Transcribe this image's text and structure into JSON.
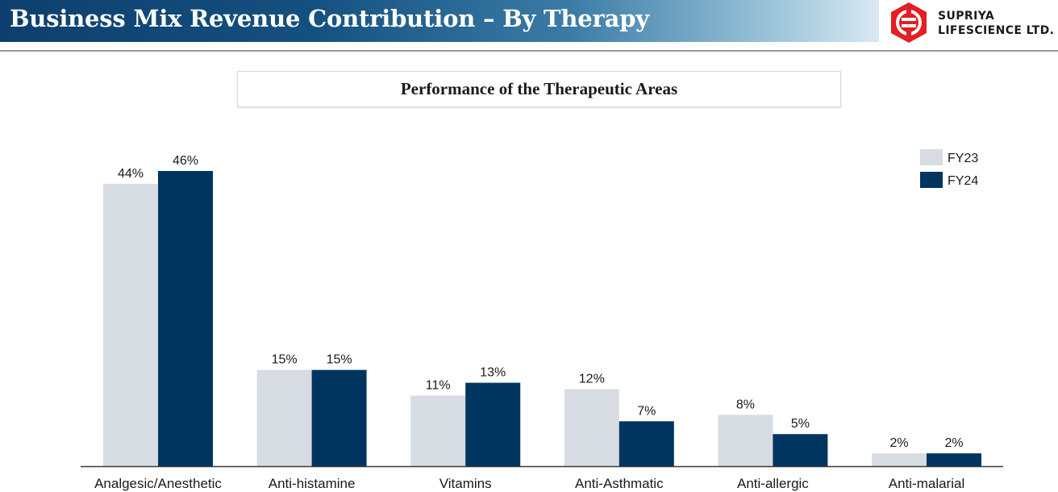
{
  "header": {
    "title": "Business Mix Revenue Contribution – By Therapy",
    "logo_line1": "SUPRIYA",
    "logo_line2": "LIFESCIENCE LTD."
  },
  "colors": {
    "header_start": "#0d3f6e",
    "logo_red": "#e31e24",
    "fy23": "#d6dce1",
    "fy24": "#003560"
  },
  "chart_data": {
    "type": "bar",
    "title": "Performance of the Therapeutic Areas",
    "categories": [
      "Analgesic/Anesthetic",
      "Anti-histamine",
      "Vitamins",
      "Anti-Asthmatic",
      "Anti-allergic",
      "Anti-malarial"
    ],
    "series": [
      {
        "name": "FY23",
        "values": [
          44,
          15,
          11,
          12,
          8,
          2
        ],
        "labels": [
          "44%",
          "15%",
          "11%",
          "12%",
          "8%",
          "2%"
        ],
        "color": "#d6dce1"
      },
      {
        "name": "FY24",
        "values": [
          46,
          15,
          13,
          7,
          5,
          2
        ],
        "labels": [
          "46%",
          "15%",
          "13%",
          "7%",
          "5%",
          "2%"
        ],
        "color": "#003560"
      }
    ],
    "ylim": [
      0,
      46
    ],
    "grid": false,
    "legend_position": "top-right"
  }
}
